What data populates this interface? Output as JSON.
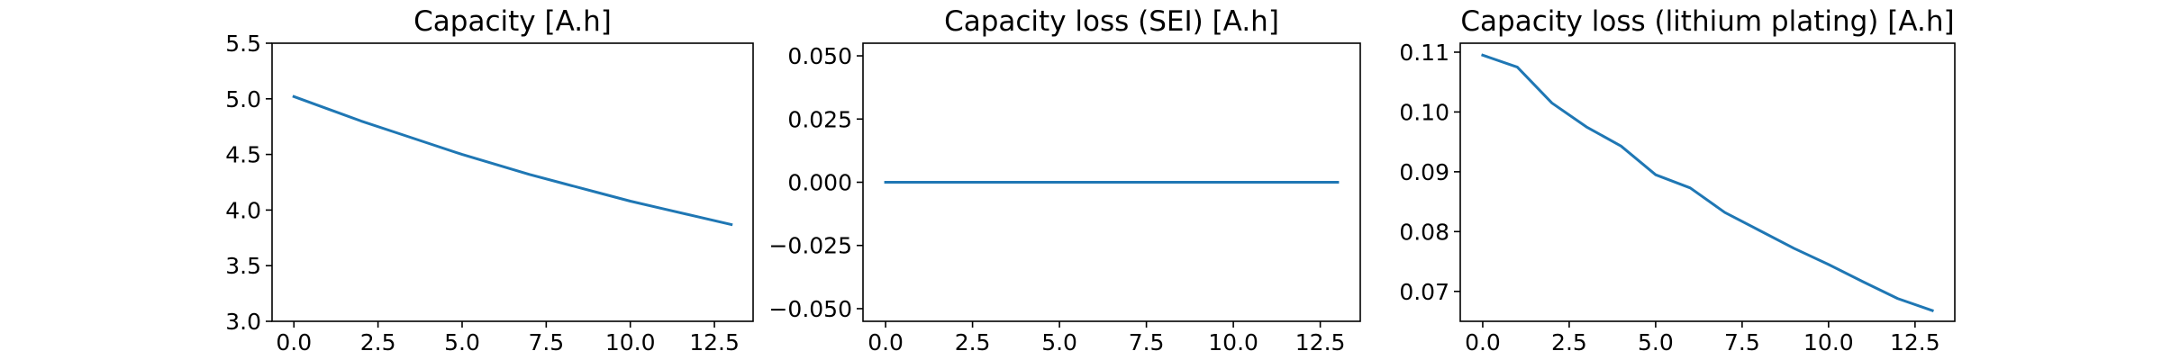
{
  "chart_data": [
    {
      "type": "line",
      "title": "Capacity [A.h]",
      "xlabel": "",
      "ylabel": "",
      "xlim": [
        -0.65,
        13.65
      ],
      "ylim": [
        3.0,
        5.5
      ],
      "xticks": [
        0.0,
        2.5,
        5.0,
        7.5,
        10.0,
        12.5
      ],
      "xtick_labels": [
        "0.0",
        "2.5",
        "5.0",
        "7.5",
        "10.0",
        "12.5"
      ],
      "yticks": [
        3.0,
        3.5,
        4.0,
        4.5,
        5.0,
        5.5
      ],
      "ytick_labels": [
        "3.0",
        "3.5",
        "4.0",
        "4.5",
        "5.0",
        "5.5"
      ],
      "grid": false,
      "series": [
        {
          "color": "#1f77b4",
          "x": [
            0,
            1,
            2,
            3,
            4,
            5,
            6,
            7,
            8,
            9,
            10,
            11,
            12,
            13
          ],
          "y": [
            5.02,
            4.91,
            4.8,
            4.7,
            4.6,
            4.5,
            4.41,
            4.32,
            4.24,
            4.16,
            4.08,
            4.01,
            3.94,
            3.87
          ]
        }
      ]
    },
    {
      "type": "line",
      "title": "Capacity loss (SEI) [A.h]",
      "xlabel": "",
      "ylabel": "",
      "xlim": [
        -0.65,
        13.65
      ],
      "ylim": [
        -0.055,
        0.055
      ],
      "xticks": [
        0.0,
        2.5,
        5.0,
        7.5,
        10.0,
        12.5
      ],
      "xtick_labels": [
        "0.0",
        "2.5",
        "5.0",
        "7.5",
        "10.0",
        "12.5"
      ],
      "yticks": [
        -0.05,
        -0.025,
        0.0,
        0.025,
        0.05
      ],
      "ytick_labels": [
        "−0.050",
        "−0.025",
        "0.000",
        "0.025",
        "0.050"
      ],
      "grid": false,
      "series": [
        {
          "color": "#1f77b4",
          "x": [
            0,
            1,
            2,
            3,
            4,
            5,
            6,
            7,
            8,
            9,
            10,
            11,
            12,
            13
          ],
          "y": [
            0,
            0,
            0,
            0,
            0,
            0,
            0,
            0,
            0,
            0,
            0,
            0,
            0,
            0
          ]
        }
      ]
    },
    {
      "type": "line",
      "title": "Capacity loss (lithium plating) [A.h]",
      "xlabel": "",
      "ylabel": "",
      "xlim": [
        -0.65,
        13.65
      ],
      "ylim": [
        0.065,
        0.1115
      ],
      "xticks": [
        0.0,
        2.5,
        5.0,
        7.5,
        10.0,
        12.5
      ],
      "xtick_labels": [
        "0.0",
        "2.5",
        "5.0",
        "7.5",
        "10.0",
        "12.5"
      ],
      "yticks": [
        0.07,
        0.08,
        0.09,
        0.1,
        0.11
      ],
      "ytick_labels": [
        "0.07",
        "0.08",
        "0.09",
        "0.10",
        "0.11"
      ],
      "grid": false,
      "series": [
        {
          "color": "#1f77b4",
          "x": [
            0,
            1,
            2,
            3,
            4,
            5,
            6,
            7,
            8,
            9,
            10,
            11,
            12,
            13
          ],
          "y": [
            0.1095,
            0.1075,
            0.1015,
            0.0975,
            0.0943,
            0.0895,
            0.0873,
            0.0832,
            0.0802,
            0.0772,
            0.0745,
            0.0716,
            0.0688,
            0.0668
          ]
        }
      ]
    }
  ]
}
